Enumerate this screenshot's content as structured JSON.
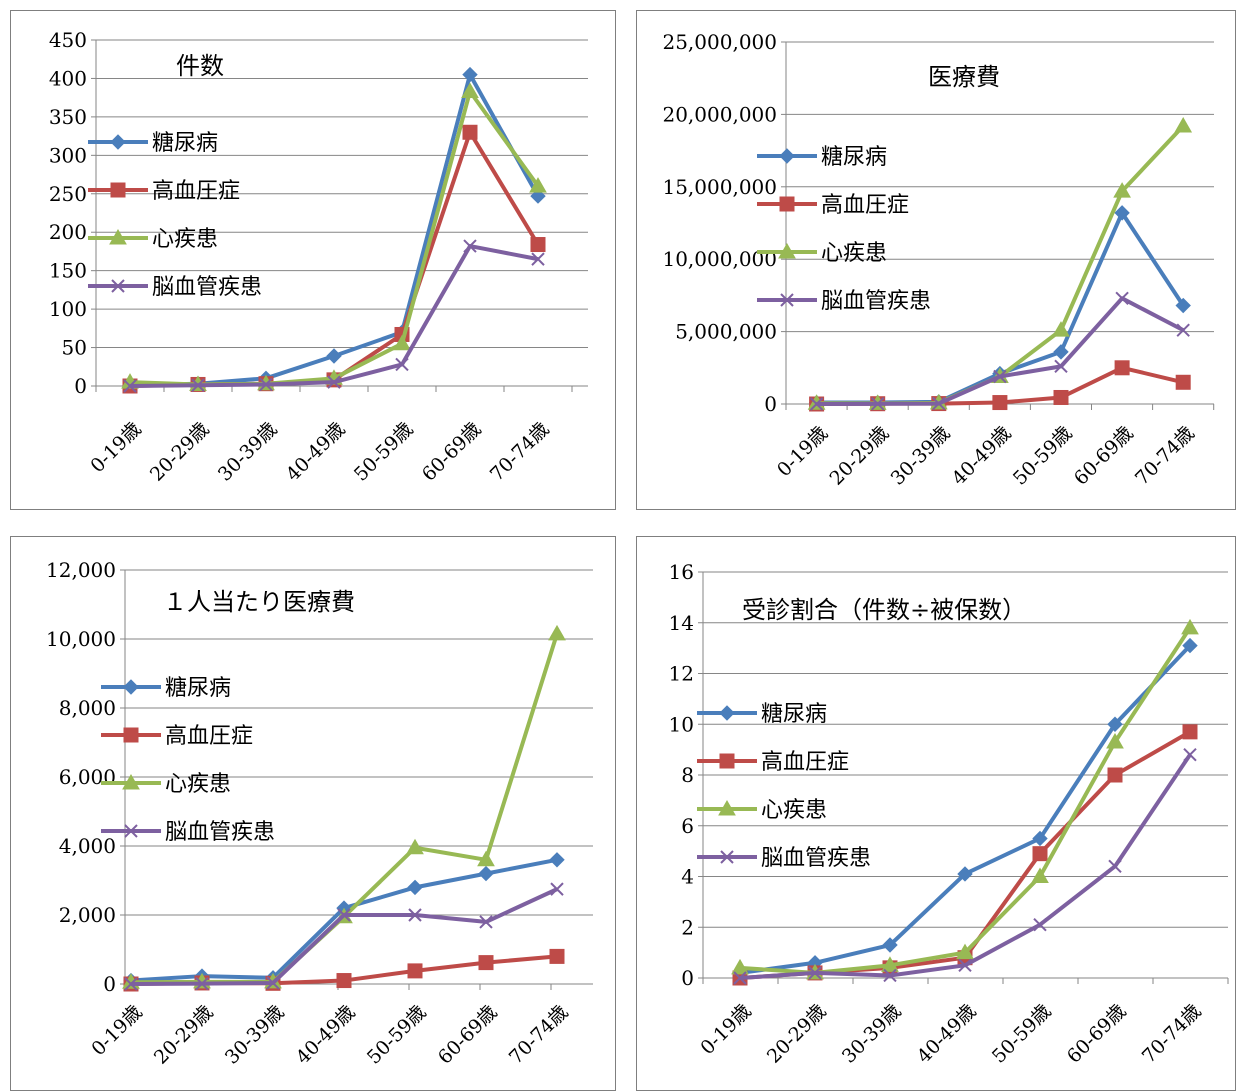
{
  "categories": [
    "0-19歳",
    "20-29歳",
    "30-39歳",
    "40-49歳",
    "50-59歳",
    "60-69歳",
    "70-74歳"
  ],
  "series_styles": [
    {
      "name": "糖尿病",
      "color": "#4a7ebb",
      "marker": "diamond"
    },
    {
      "name": "高血圧症",
      "color": "#be4b48",
      "marker": "square"
    },
    {
      "name": "心疾患",
      "color": "#98b954",
      "marker": "triangle"
    },
    {
      "name": "脳血管疾患",
      "color": "#7d60a0",
      "marker": "x"
    }
  ],
  "chart_data": [
    {
      "type": "line",
      "title": "件数",
      "ylim": [
        0,
        450
      ],
      "yticks": [
        0,
        50,
        100,
        150,
        200,
        250,
        300,
        350,
        400,
        450
      ],
      "ytick_labels": [
        "0",
        "50",
        "100",
        "150",
        "200",
        "250",
        "300",
        "350",
        "400",
        "450"
      ],
      "categories": [
        "0-19歳",
        "20-29歳",
        "30-39歳",
        "40-49歳",
        "50-59歳",
        "60-69歳",
        "70-74歳"
      ],
      "grid": true,
      "legend": "left",
      "series": [
        {
          "name": "糖尿病",
          "values": [
            1,
            3,
            10,
            39,
            70,
            405,
            247
          ]
        },
        {
          "name": "高血圧症",
          "values": [
            0,
            2,
            3,
            8,
            67,
            330,
            184
          ]
        },
        {
          "name": "心疾患",
          "values": [
            5,
            2,
            3,
            10,
            55,
            383,
            260
          ]
        },
        {
          "name": "脳血管疾患",
          "values": [
            0,
            1,
            2,
            5,
            28,
            182,
            165
          ]
        }
      ]
    },
    {
      "type": "line",
      "title": "医療費",
      "ylim": [
        0,
        25000000
      ],
      "yticks": [
        0,
        5000000,
        10000000,
        15000000,
        20000000,
        25000000
      ],
      "ytick_labels": [
        "0",
        "5,000,000",
        "10,000,000",
        "15,000,000",
        "20,000,000",
        "25,000,000"
      ],
      "categories": [
        "0-19歳",
        "20-29歳",
        "30-39歳",
        "40-49歳",
        "50-59歳",
        "60-69歳",
        "70-74歳"
      ],
      "grid": true,
      "legend": "left",
      "series": [
        {
          "name": "糖尿病",
          "values": [
            100000,
            100000,
            150000,
            2100000,
            3600000,
            13200000,
            6800000
          ]
        },
        {
          "name": "高血圧症",
          "values": [
            0,
            20000,
            30000,
            100000,
            450000,
            2500000,
            1500000
          ]
        },
        {
          "name": "心疾患",
          "values": [
            50000,
            40000,
            80000,
            1900000,
            5100000,
            14700000,
            19200000
          ]
        },
        {
          "name": "脳血管疾患",
          "values": [
            0,
            10000,
            30000,
            1900000,
            2600000,
            7300000,
            5100000
          ]
        }
      ]
    },
    {
      "type": "line",
      "title": "１人当たり医療費",
      "ylim": [
        0,
        12000
      ],
      "yticks": [
        0,
        2000,
        4000,
        6000,
        8000,
        10000,
        12000
      ],
      "ytick_labels": [
        "0",
        "2,000",
        "4,000",
        "6,000",
        "8,000",
        "10,000",
        "12,000"
      ],
      "categories": [
        "0-19歳",
        "20-29歳",
        "30-39歳",
        "40-49歳",
        "50-59歳",
        "60-69歳",
        "70-74歳"
      ],
      "grid": true,
      "legend": "left",
      "series": [
        {
          "name": "糖尿病",
          "values": [
            100,
            230,
            180,
            2200,
            2800,
            3200,
            3600
          ]
        },
        {
          "name": "高血圧症",
          "values": [
            0,
            30,
            20,
            100,
            380,
            620,
            800
          ]
        },
        {
          "name": "心疾患",
          "values": [
            50,
            60,
            60,
            1950,
            3950,
            3600,
            10150
          ]
        },
        {
          "name": "脳血管疾患",
          "values": [
            0,
            10,
            30,
            2000,
            2000,
            1800,
            2750
          ]
        }
      ]
    },
    {
      "type": "line",
      "title": "受診割合（件数÷被保数）",
      "ylim": [
        0,
        16
      ],
      "yticks": [
        0,
        2,
        4,
        6,
        8,
        10,
        12,
        14,
        16
      ],
      "ytick_labels": [
        "0",
        "2",
        "4",
        "6",
        "8",
        "10",
        "12",
        "14",
        "16"
      ],
      "categories": [
        "0-19歳",
        "20-29歳",
        "30-39歳",
        "40-49歳",
        "50-59歳",
        "60-69歳",
        "70-74歳"
      ],
      "grid": true,
      "legend": "left",
      "series": [
        {
          "name": "糖尿病",
          "values": [
            0.2,
            0.6,
            1.3,
            4.1,
            5.5,
            10.0,
            13.1
          ]
        },
        {
          "name": "高血圧症",
          "values": [
            0,
            0.2,
            0.4,
            0.8,
            4.9,
            8.0,
            9.7
          ]
        },
        {
          "name": "心疾患",
          "values": [
            0.4,
            0.2,
            0.5,
            1.0,
            4.0,
            9.3,
            13.8
          ]
        },
        {
          "name": "脳血管疾患",
          "values": [
            0,
            0.2,
            0.1,
            0.5,
            2.1,
            4.4,
            8.8
          ]
        }
      ]
    }
  ]
}
